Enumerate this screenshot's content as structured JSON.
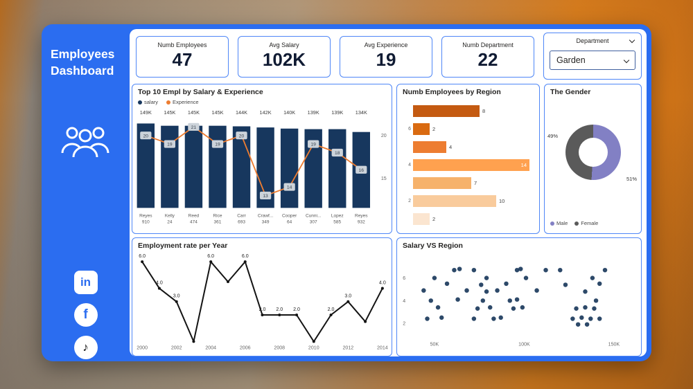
{
  "sidebar": {
    "title": "Employees Dashboard",
    "social_glyphs": {
      "linkedin": "in",
      "facebook": "f",
      "tiktok": "♪"
    }
  },
  "kpis": [
    {
      "label": "Numb Employees",
      "value": "47"
    },
    {
      "label": "Avg Salary",
      "value": "102K"
    },
    {
      "label": "Avg Experience",
      "value": "19"
    },
    {
      "label": "Numb Department",
      "value": "22"
    }
  ],
  "slicer": {
    "label": "Department",
    "value": "Garden"
  },
  "colors": {
    "frame_blue": "#2b6df0",
    "panel_border": "#4e86f7"
  },
  "chart_data": [
    {
      "id": "top10",
      "type": "bar",
      "title": "Top 10 Empl by Salary & Experience",
      "legend": [
        "salary",
        "Experience"
      ],
      "names": [
        "Reyes",
        "Kelly",
        "Reed",
        "Rice",
        "Carr",
        "Crawf...",
        "Cooper",
        "Cunni...",
        "Lopez",
        "Reyes"
      ],
      "ids": [
        "910",
        "24",
        "474",
        "361",
        "693",
        "349",
        "64",
        "307",
        "585",
        "932"
      ],
      "salary_labels": [
        "149K",
        "145K",
        "145K",
        "145K",
        "144K",
        "142K",
        "140K",
        "139K",
        "139K",
        "134K"
      ],
      "salary_values": [
        149,
        145,
        145,
        145,
        144,
        142,
        140,
        139,
        139,
        134
      ],
      "experience_values": [
        20,
        19,
        21,
        19,
        20,
        13,
        14,
        19,
        18,
        16
      ],
      "right_axis_ticks": [
        20,
        15
      ],
      "colors": {
        "bar": "#17375e",
        "line": "#ed7d31"
      }
    },
    {
      "id": "region",
      "type": "bar",
      "title": "Numb Employees by Region",
      "values": [
        8,
        2,
        4,
        14,
        7,
        10,
        2
      ],
      "axis_labels": [
        "",
        "6",
        "",
        "4",
        "",
        "2",
        ""
      ],
      "bar_colors": [
        "#c45a11",
        "#d96a11",
        "#ed7d31",
        "#ffa14f",
        "#f6b26b",
        "#f9cb9c",
        "#fbe5d0"
      ],
      "inside_label_index": 3
    },
    {
      "id": "gender",
      "type": "pie",
      "title": "The Gender",
      "slices": [
        {
          "label": "Male",
          "pct": 51,
          "color": "#8280c4"
        },
        {
          "label": "Female",
          "pct": 49,
          "color": "#5a5a5a"
        }
      ],
      "callouts": [
        "49%",
        "51%"
      ]
    },
    {
      "id": "employment",
      "type": "line",
      "title": "Employment rate per Year",
      "years": [
        2000,
        2001,
        2002,
        2003,
        2004,
        2005,
        2006,
        2007,
        2008,
        2009,
        2010,
        2011,
        2012,
        2013,
        2014
      ],
      "values": [
        6,
        4,
        3,
        0,
        6,
        4.5,
        6,
        2,
        2,
        2,
        0,
        2,
        3,
        1.5,
        4
      ],
      "point_labels": [
        "6.0",
        "4.0",
        "3.0",
        "",
        "6.0",
        "",
        "6.0",
        "2.0",
        "2.0",
        "2.0",
        "",
        "2.0",
        "3.0",
        "",
        "4.0"
      ],
      "x_ticks": [
        2000,
        2002,
        2004,
        2006,
        2008,
        2010,
        2012,
        2014
      ],
      "ylim": [
        0,
        6.5
      ],
      "color": "#141414"
    },
    {
      "id": "salary_region",
      "type": "scatter",
      "title": "Salary VS Region",
      "x_tick_labels": [
        "50K",
        "100K",
        "150K"
      ],
      "x_tick_values": [
        50,
        100,
        150
      ],
      "y_ticks": [
        2,
        4,
        6
      ],
      "color": "#1b3a5c",
      "points": [
        [
          61,
          6.7
        ],
        [
          64,
          6.8
        ],
        [
          72,
          6.7
        ],
        [
          96,
          6.7
        ],
        [
          98,
          6.8
        ],
        [
          112,
          6.7
        ],
        [
          120,
          6.7
        ],
        [
          145,
          6.7
        ],
        [
          50,
          6
        ],
        [
          79,
          6
        ],
        [
          101,
          6
        ],
        [
          138,
          6
        ],
        [
          57,
          5.5
        ],
        [
          76,
          5.4
        ],
        [
          90,
          5.5
        ],
        [
          123,
          5.4
        ],
        [
          142,
          5.5
        ],
        [
          44,
          4.9
        ],
        [
          68,
          4.9
        ],
        [
          79,
          4.8
        ],
        [
          85,
          4.9
        ],
        [
          107,
          4.9
        ],
        [
          134,
          4.8
        ],
        [
          48,
          4
        ],
        [
          63,
          4.1
        ],
        [
          77,
          4
        ],
        [
          92,
          4
        ],
        [
          96,
          4.1
        ],
        [
          140,
          4
        ],
        [
          52,
          3.4
        ],
        [
          74,
          3.3
        ],
        [
          81,
          3.4
        ],
        [
          94,
          3.3
        ],
        [
          99,
          3.4
        ],
        [
          129,
          3.3
        ],
        [
          134,
          3.4
        ],
        [
          139,
          3.3
        ],
        [
          46,
          2.4
        ],
        [
          54,
          2.5
        ],
        [
          72,
          2.4
        ],
        [
          83,
          2.4
        ],
        [
          87,
          2.5
        ],
        [
          127,
          2.4
        ],
        [
          132,
          2.5
        ],
        [
          137,
          2.4
        ],
        [
          142,
          2.4
        ],
        [
          130,
          1.9
        ],
        [
          135,
          1.9
        ]
      ]
    }
  ]
}
